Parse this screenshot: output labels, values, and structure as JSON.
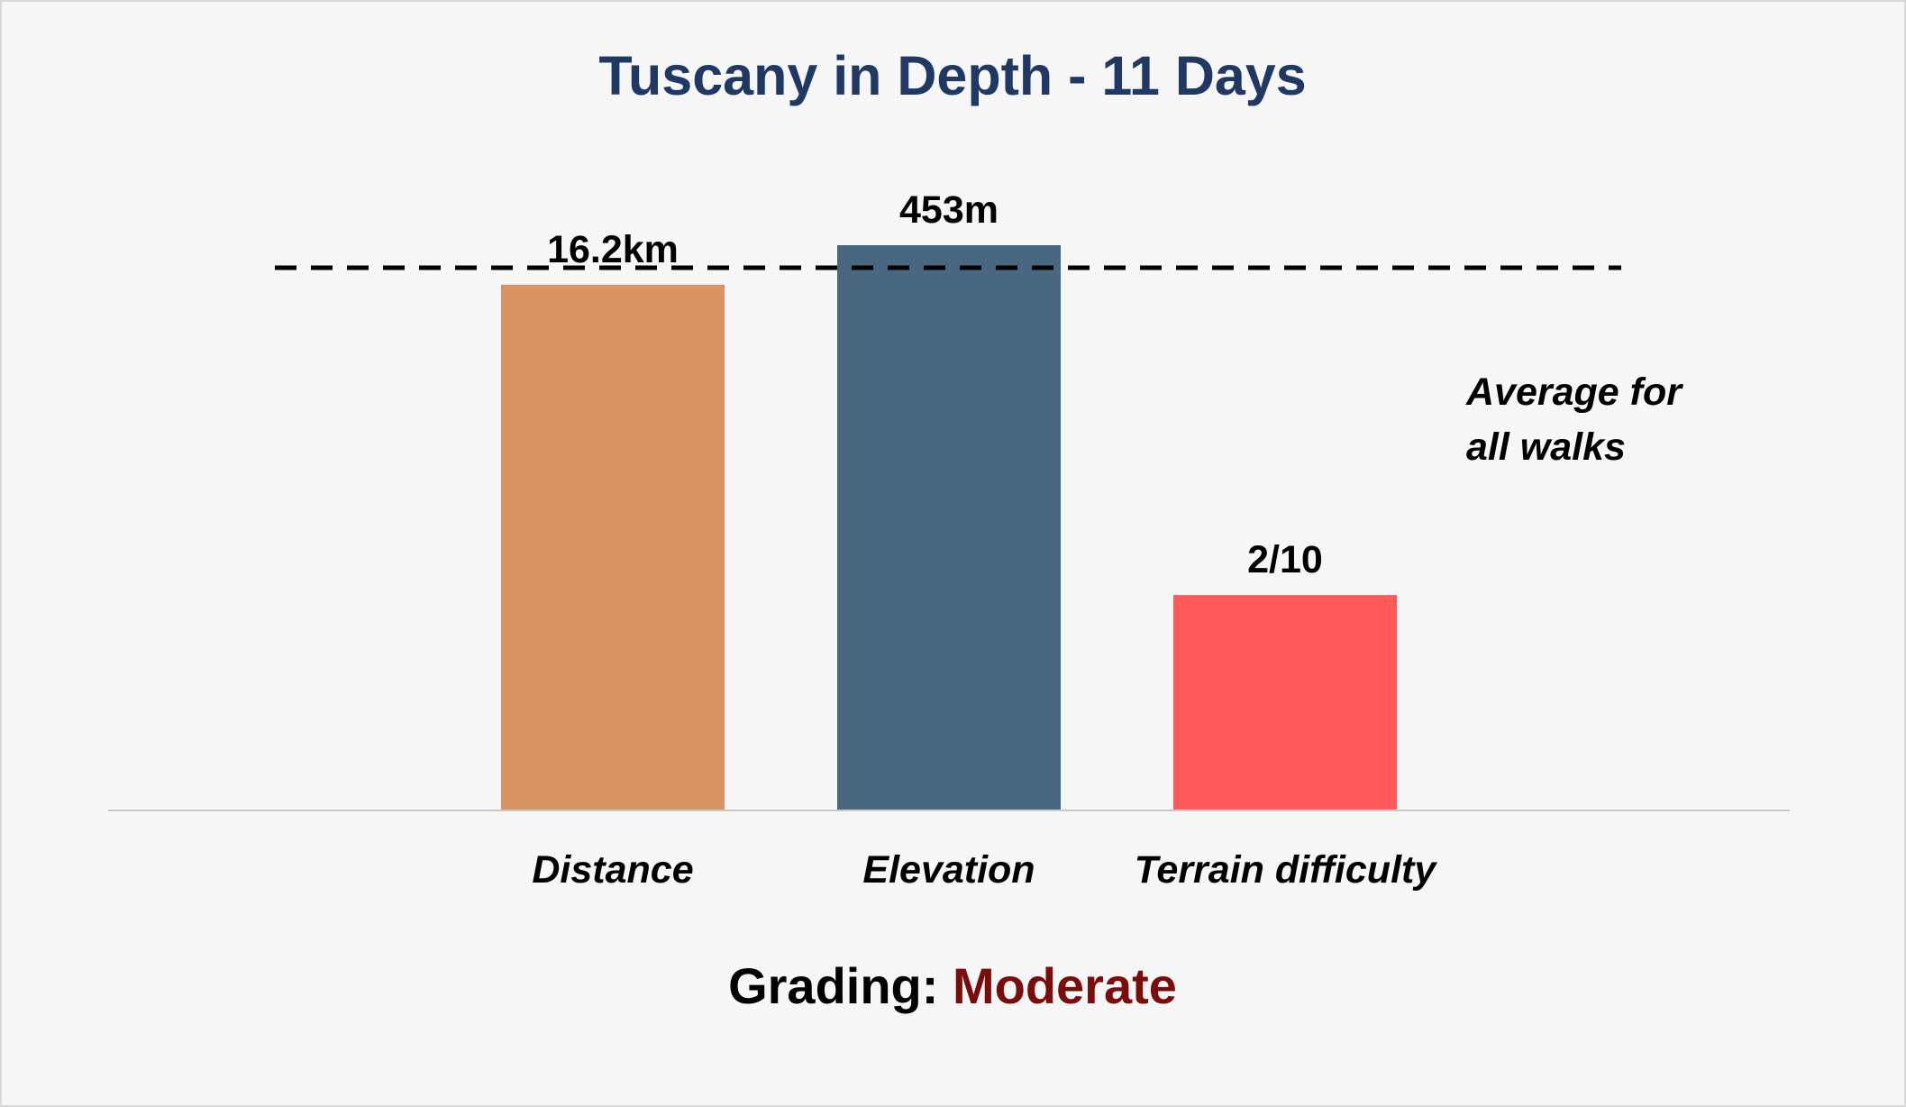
{
  "chart_data": {
    "type": "bar",
    "title": "Tuscany in Depth - 11 Days",
    "categories": [
      "Distance",
      "Elevation",
      "Terrain difficulty"
    ],
    "values": [
      0.93,
      1.0,
      0.38
    ],
    "data_labels": [
      "16.2km",
      "453m",
      "2/10"
    ],
    "bar_colors": [
      "#d79363",
      "#4a6782",
      "#ff5a5a"
    ],
    "reference_line": {
      "value": 0.96,
      "style": "dashed",
      "color": "#000000",
      "label_lines": [
        "Average for",
        "all walks"
      ]
    },
    "ylim": [
      0,
      1.0
    ],
    "xlabel": "",
    "ylabel": "",
    "grid": false,
    "legend": "none"
  },
  "grading": {
    "label": "Grading:",
    "value": "Moderate",
    "value_color": "#7b0c0c"
  },
  "colors": {
    "title": "#1f3864",
    "background": "#f6f6f6",
    "axis": "#c8c8c8"
  }
}
